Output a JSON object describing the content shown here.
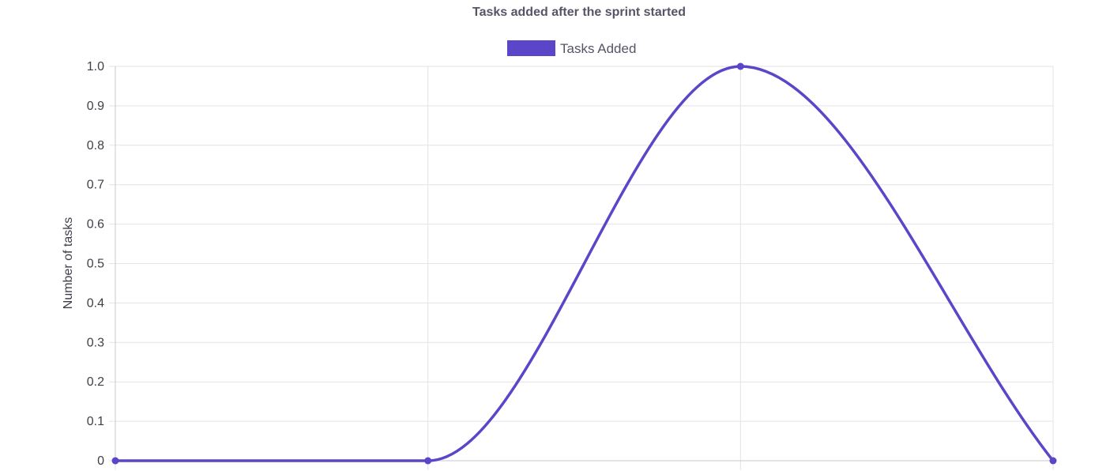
{
  "chart_data": {
    "type": "line",
    "title": "Tasks added after the sprint started",
    "xlabel": "",
    "ylabel": "Number of tasks",
    "x": [
      "",
      "",
      "",
      ""
    ],
    "ylim": [
      0,
      1
    ],
    "y_ticks": [
      "0",
      "0.1",
      "0.2",
      "0.3",
      "0.4",
      "0.5",
      "0.6",
      "0.7",
      "0.8",
      "0.9",
      "1.0"
    ],
    "grid": true,
    "legend_position": "top",
    "series": [
      {
        "name": "Tasks Added",
        "values": [
          0,
          0,
          1,
          0
        ],
        "color": "#5b45c8"
      }
    ]
  }
}
